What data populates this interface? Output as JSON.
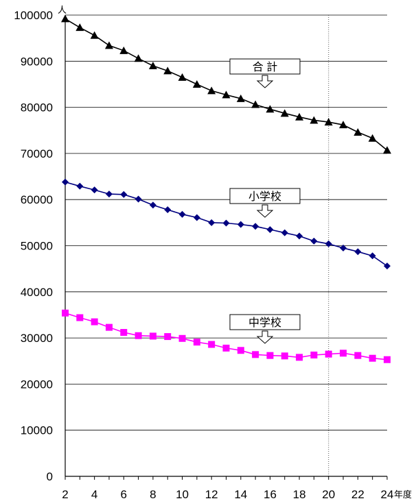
{
  "chart_data": {
    "type": "line",
    "y_unit": "人",
    "x_unit": "年度",
    "ylim": [
      0,
      100000
    ],
    "y_ticks": [
      0,
      10000,
      20000,
      30000,
      40000,
      50000,
      60000,
      70000,
      80000,
      90000,
      100000
    ],
    "xlim": [
      2,
      24
    ],
    "x_tick_labels": [
      2,
      4,
      6,
      8,
      10,
      12,
      14,
      16,
      18,
      20,
      22,
      24
    ],
    "x_reference_line": 20,
    "grid": "horizontal",
    "x": [
      2,
      3,
      4,
      5,
      6,
      7,
      8,
      9,
      10,
      11,
      12,
      13,
      14,
      15,
      16,
      17,
      18,
      19,
      20,
      21,
      22,
      23,
      24
    ],
    "series": [
      {
        "name": "合 計",
        "color": "#000000",
        "marker": "triangle",
        "values": [
          99200,
          97300,
          95600,
          93400,
          92300,
          90600,
          89000,
          87900,
          86500,
          85000,
          83600,
          82700,
          81900,
          80600,
          79600,
          78700,
          77900,
          77200,
          76800,
          76200,
          74600,
          73300,
          70700
        ]
      },
      {
        "name": "小学校",
        "color": "#000080",
        "marker": "diamond",
        "values": [
          63800,
          62900,
          62100,
          61200,
          61100,
          60100,
          58800,
          57800,
          56800,
          56100,
          55000,
          54900,
          54600,
          54200,
          53500,
          52800,
          52100,
          51000,
          50400,
          49500,
          48700,
          47800,
          45600
        ]
      },
      {
        "name": "中学校",
        "color": "#ff00ff",
        "marker": "square",
        "values": [
          35400,
          34400,
          33500,
          32300,
          31200,
          30500,
          30400,
          30300,
          29900,
          29100,
          28600,
          27800,
          27300,
          26400,
          26200,
          26100,
          25800,
          26300,
          26500,
          26700,
          26200,
          25600,
          25300
        ]
      }
    ]
  }
}
